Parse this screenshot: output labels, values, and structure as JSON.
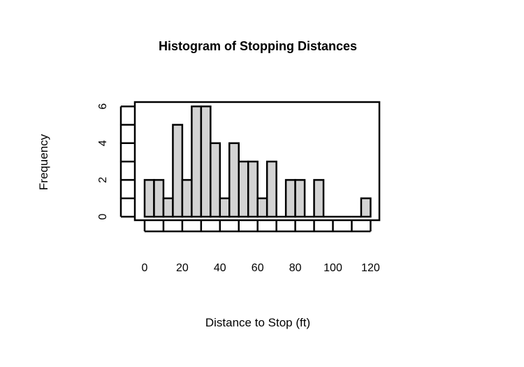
{
  "chart_data": {
    "type": "bar",
    "subtype": "histogram",
    "title": "Histogram of Stopping Distances",
    "xlabel": "Distance to Stop (ft)",
    "ylabel": "Frequency",
    "bin_width": 5,
    "bins": [
      {
        "start": 0,
        "end": 5,
        "count": 2
      },
      {
        "start": 5,
        "end": 10,
        "count": 2
      },
      {
        "start": 10,
        "end": 15,
        "count": 1
      },
      {
        "start": 15,
        "end": 20,
        "count": 5
      },
      {
        "start": 20,
        "end": 25,
        "count": 2
      },
      {
        "start": 25,
        "end": 30,
        "count": 6
      },
      {
        "start": 30,
        "end": 35,
        "count": 6
      },
      {
        "start": 35,
        "end": 40,
        "count": 4
      },
      {
        "start": 40,
        "end": 45,
        "count": 1
      },
      {
        "start": 45,
        "end": 50,
        "count": 4
      },
      {
        "start": 50,
        "end": 55,
        "count": 3
      },
      {
        "start": 55,
        "end": 60,
        "count": 3
      },
      {
        "start": 60,
        "end": 65,
        "count": 1
      },
      {
        "start": 65,
        "end": 70,
        "count": 3
      },
      {
        "start": 70,
        "end": 75,
        "count": 0
      },
      {
        "start": 75,
        "end": 80,
        "count": 2
      },
      {
        "start": 80,
        "end": 85,
        "count": 2
      },
      {
        "start": 85,
        "end": 90,
        "count": 0
      },
      {
        "start": 90,
        "end": 95,
        "count": 2
      },
      {
        "start": 95,
        "end": 100,
        "count": 0
      },
      {
        "start": 100,
        "end": 105,
        "count": 0
      },
      {
        "start": 105,
        "end": 110,
        "count": 0
      },
      {
        "start": 110,
        "end": 115,
        "count": 0
      },
      {
        "start": 115,
        "end": 120,
        "count": 1
      }
    ],
    "xlim": [
      -5,
      125
    ],
    "ylim": [
      0,
      6.4
    ],
    "x_ticks": [
      0,
      20,
      40,
      60,
      80,
      100,
      120
    ],
    "y_ticks": [
      0,
      2,
      4,
      6
    ],
    "y_minor_ticks": [
      1,
      3,
      5
    ],
    "grid": false,
    "legend": "none",
    "colors": {
      "bar_fill": "#d3d3d3",
      "bar_stroke": "#000000",
      "axis": "#000000"
    }
  }
}
